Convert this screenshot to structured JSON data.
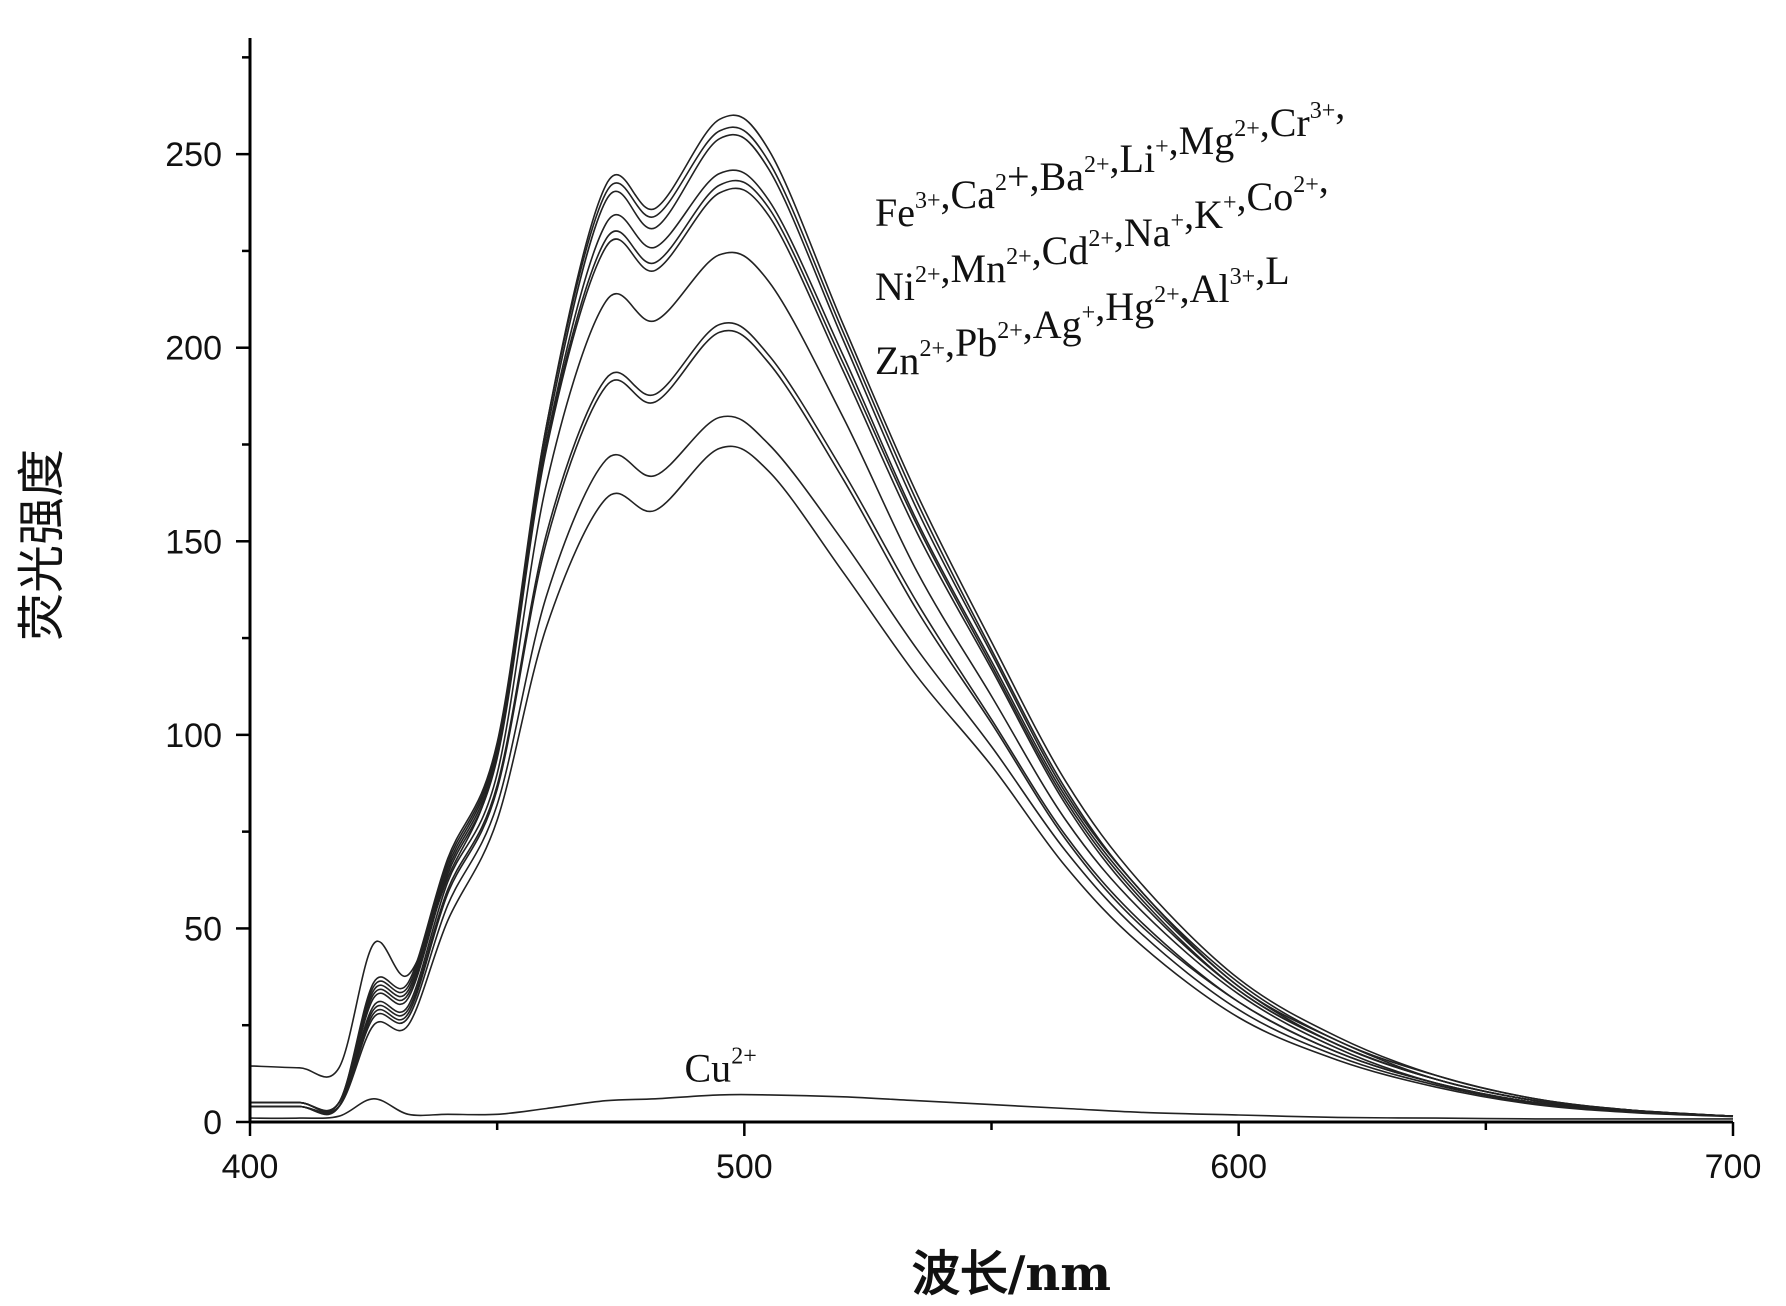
{
  "chart_data": {
    "type": "line",
    "title": "",
    "xlabel": "波长/nm",
    "ylabel": "荧光强度",
    "xlim": [
      400,
      700
    ],
    "ylim": [
      0,
      280
    ],
    "xticks": [
      400,
      500,
      600,
      700
    ],
    "yticks": [
      0,
      50,
      100,
      150,
      200,
      250
    ],
    "grid": false,
    "legend_text": [
      [
        [
          "Fe",
          "3+"
        ],
        [
          ",Ca",
          "2"
        ],
        [
          "+,Ba",
          "2+"
        ],
        [
          ",Li",
          "+"
        ],
        [
          ",Mg",
          "2+"
        ],
        [
          ",Cr",
          "3+"
        ],
        [
          ",",
          ""
        ]
      ],
      [
        [
          "Ni",
          "2+"
        ],
        [
          ",Mn",
          "2+"
        ],
        [
          ",Cd",
          "2+"
        ],
        [
          ",Na",
          "+"
        ],
        [
          ",K",
          "+"
        ],
        [
          ",Co",
          "2+"
        ],
        [
          ",",
          ""
        ]
      ],
      [
        [
          "Zn",
          "2+"
        ],
        [
          ",Pb",
          "2+"
        ],
        [
          ",Ag",
          "+"
        ],
        [
          ",Hg",
          "2+"
        ],
        [
          ",Al",
          "3+"
        ],
        [
          ",L",
          ""
        ]
      ]
    ],
    "annotation": {
      "text": "Cu",
      "sup": "2+",
      "x": 497,
      "y": 13
    },
    "x": [
      400,
      410,
      418,
      425,
      432,
      440,
      450,
      460,
      472,
      482,
      495,
      505,
      520,
      535,
      550,
      565,
      580,
      600,
      620,
      640,
      660,
      680,
      700
    ],
    "series": [
      {
        "values": [
          14.5,
          14,
          14,
          46,
          38,
          63,
          95,
          180,
          242,
          236,
          259,
          251,
          206,
          162,
          124,
          88,
          62,
          37,
          22,
          12,
          6,
          3,
          1.5
        ]
      },
      {
        "values": [
          5,
          5,
          5,
          36,
          36,
          68,
          98,
          180,
          240,
          234,
          256,
          248,
          204,
          160,
          122,
          86,
          60,
          36,
          21,
          12,
          6,
          3,
          1.5
        ]
      },
      {
        "values": [
          5,
          5,
          5,
          35,
          35,
          67,
          97,
          178,
          238,
          231,
          254,
          246,
          202,
          158,
          121,
          85,
          60,
          35,
          21,
          11,
          5.5,
          3,
          1.5
        ]
      },
      {
        "values": [
          5,
          5,
          5,
          34,
          34,
          66,
          96,
          176,
          232,
          226,
          245,
          238,
          198,
          155,
          119,
          84,
          59,
          35,
          20,
          11,
          5.5,
          3,
          1.5
        ]
      },
      {
        "values": [
          5,
          5,
          5,
          33,
          33,
          65,
          95,
          175,
          228,
          222,
          242,
          236,
          196,
          154,
          118,
          83,
          58,
          34,
          20,
          11,
          5.5,
          2.8,
          1.5
        ]
      },
      {
        "values": [
          4,
          4,
          4,
          32,
          32,
          64,
          94,
          174,
          226,
          220,
          240,
          234,
          194,
          152,
          117,
          82,
          57,
          34,
          20,
          11,
          5.5,
          2.8,
          1.5
        ]
      },
      {
        "values": [
          4,
          4,
          4,
          30,
          30,
          62,
          90,
          165,
          212,
          207,
          224,
          217,
          182,
          142,
          110,
          78,
          55,
          33,
          19,
          10,
          5,
          2.7,
          1.5
        ]
      },
      {
        "values": [
          4,
          4,
          4,
          29,
          29,
          60,
          87,
          152,
          192,
          188,
          206,
          198,
          168,
          134,
          104,
          74,
          52,
          31,
          18,
          10,
          5,
          2.6,
          1.5
        ]
      },
      {
        "values": [
          4,
          4,
          4,
          28,
          28,
          59,
          86,
          150,
          190,
          186,
          204,
          196,
          166,
          132,
          103,
          73,
          51,
          31,
          18,
          10,
          5,
          2.6,
          1.5
        ]
      },
      {
        "values": [
          4,
          4,
          4,
          27,
          27,
          56,
          82,
          136,
          171,
          167,
          182,
          175,
          150,
          122,
          97,
          70,
          49,
          29,
          17,
          9.5,
          4.8,
          2.5,
          1.5
        ]
      },
      {
        "values": [
          4,
          4,
          4,
          25,
          25,
          52,
          78,
          128,
          161,
          158,
          174,
          168,
          142,
          115,
          92,
          66,
          46,
          27,
          16,
          9,
          4.5,
          2.4,
          1.4
        ]
      },
      {
        "values": [
          1,
          1,
          1.5,
          6,
          2,
          2,
          2,
          3.5,
          5.5,
          6,
          7,
          7,
          6.5,
          5.5,
          4.5,
          3.5,
          2.5,
          1.8,
          1.2,
          1,
          0.8,
          0.8,
          0.8
        ]
      }
    ]
  }
}
